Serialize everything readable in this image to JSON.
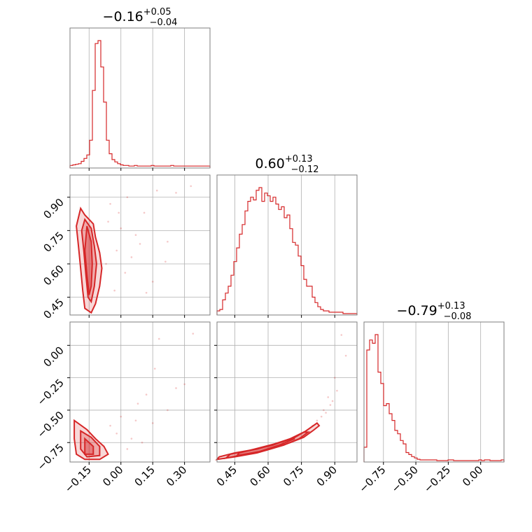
{
  "colors": {
    "accent": "#d62728",
    "grid": "#b0b0b0",
    "frame": "#7f7f7f",
    "background": "#ffffff"
  },
  "chart_data": {
    "type": "corner",
    "grid": true,
    "parameters": [
      {
        "title": {
          "median": "−0.16",
          "plus": "+0.05",
          "minus": "−0.04"
        },
        "range": [
          -0.24,
          0.42
        ],
        "ticks": [
          {
            "v": -0.15,
            "label": "−0.15"
          },
          {
            "v": 0.0,
            "label": "0.00"
          },
          {
            "v": 0.15,
            "label": "0.15"
          },
          {
            "v": 0.3,
            "label": "0.30"
          }
        ]
      },
      {
        "title": {
          "median": "0.60",
          "plus": "+0.13",
          "minus": "−0.12"
        },
        "range": [
          0.37,
          1.0
        ],
        "ticks": [
          {
            "v": 0.45,
            "label": "0.45"
          },
          {
            "v": 0.6,
            "label": "0.60"
          },
          {
            "v": 0.75,
            "label": "0.75"
          },
          {
            "v": 0.9,
            "label": "0.90"
          }
        ]
      },
      {
        "title": {
          "median": "−0.79",
          "plus": "+0.13",
          "minus": "−0.08"
        },
        "range": [
          -0.9,
          0.18
        ],
        "ticks": [
          {
            "v": -0.75,
            "label": "−0.75"
          },
          {
            "v": -0.5,
            "label": "−0.50"
          },
          {
            "v": -0.25,
            "label": "−0.25"
          },
          {
            "v": 0.0,
            "label": "0.00"
          }
        ]
      }
    ],
    "histograms": [
      {
        "param": 0,
        "bin_start": -0.24,
        "bin_width": 0.0132,
        "counts": [
          2,
          3,
          4,
          5,
          9,
          14,
          20,
          45,
          130,
          210,
          215,
          170,
          110,
          45,
          22,
          12,
          8,
          5,
          3,
          2,
          2,
          1,
          1,
          2,
          1,
          1,
          1,
          1,
          1,
          2,
          1,
          1,
          1,
          1,
          1,
          1,
          2,
          1,
          1,
          1,
          1,
          1,
          1,
          1,
          1,
          1,
          1,
          1,
          1,
          1
        ]
      },
      {
        "param": 1,
        "bin_start": 0.37,
        "bin_width": 0.0126,
        "counts": [
          2,
          3,
          10,
          15,
          20,
          28,
          38,
          48,
          58,
          65,
          75,
          82,
          85,
          83,
          90,
          92,
          82,
          88,
          86,
          82,
          85,
          80,
          76,
          78,
          70,
          72,
          62,
          52,
          50,
          42,
          35,
          25,
          20,
          20,
          12,
          8,
          5,
          3,
          2,
          2,
          1,
          1,
          1,
          1,
          1,
          0,
          0,
          0,
          0,
          0
        ]
      },
      {
        "param": 2,
        "bin_start": -0.9,
        "bin_width": 0.0216,
        "counts": [
          20,
          165,
          180,
          175,
          188,
          132,
          115,
          82,
          85,
          70,
          60,
          45,
          40,
          30,
          25,
          12,
          9,
          6,
          4,
          2,
          1,
          1,
          1,
          1,
          1,
          1,
          0,
          0,
          0,
          0,
          1,
          1,
          0,
          0,
          0,
          0,
          0,
          0,
          0,
          0,
          0,
          1,
          0,
          1,
          1,
          0,
          0,
          0,
          0,
          1
        ]
      }
    ],
    "scatter": [
      {
        "x_param": 0,
        "y_param": 1,
        "contours": [
          [
            [
              -0.19,
              0.85
            ],
            [
              -0.17,
              0.82
            ],
            [
              -0.13,
              0.78
            ],
            [
              -0.12,
              0.72
            ],
            [
              -0.1,
              0.65
            ],
            [
              -0.09,
              0.58
            ],
            [
              -0.1,
              0.5
            ],
            [
              -0.12,
              0.42
            ],
            [
              -0.14,
              0.38
            ],
            [
              -0.17,
              0.4
            ],
            [
              -0.18,
              0.48
            ],
            [
              -0.19,
              0.58
            ],
            [
              -0.2,
              0.68
            ],
            [
              -0.21,
              0.77
            ]
          ],
          [
            [
              -0.17,
              0.8
            ],
            [
              -0.14,
              0.76
            ],
            [
              -0.125,
              0.68
            ],
            [
              -0.115,
              0.6
            ],
            [
              -0.125,
              0.5
            ],
            [
              -0.14,
              0.43
            ],
            [
              -0.155,
              0.45
            ],
            [
              -0.165,
              0.55
            ],
            [
              -0.175,
              0.66
            ],
            [
              -0.185,
              0.75
            ]
          ],
          [
            [
              -0.16,
              0.77
            ],
            [
              -0.14,
              0.7
            ],
            [
              -0.135,
              0.6
            ],
            [
              -0.14,
              0.5
            ],
            [
              -0.15,
              0.46
            ],
            [
              -0.16,
              0.55
            ],
            [
              -0.17,
              0.66
            ]
          ]
        ],
        "points": [
          [
            0.26,
            0.92
          ],
          [
            0.33,
            0.95
          ],
          [
            0.11,
            0.83
          ],
          [
            0.21,
            0.61
          ],
          [
            -0.05,
            0.87
          ],
          [
            0.02,
            0.56
          ],
          [
            0.07,
            0.73
          ],
          [
            -0.02,
            0.66
          ],
          [
            0.15,
            0.52
          ],
          [
            0.17,
            0.93
          ],
          [
            -0.03,
            0.48
          ],
          [
            0.05,
            0.63
          ],
          [
            0.09,
            0.69
          ],
          [
            -0.06,
            0.79
          ],
          [
            0.12,
            0.47
          ],
          [
            -0.01,
            0.83
          ],
          [
            0.03,
            0.9
          ],
          [
            0.22,
            0.7
          ],
          [
            -0.07,
            0.6
          ],
          [
            0.0,
            0.76
          ]
        ]
      },
      {
        "x_param": 0,
        "y_param": 2,
        "contours": [
          [
            [
              -0.22,
              -0.58
            ],
            [
              -0.16,
              -0.65
            ],
            [
              -0.12,
              -0.72
            ],
            [
              -0.08,
              -0.78
            ],
            [
              -0.06,
              -0.84
            ],
            [
              -0.1,
              -0.88
            ],
            [
              -0.17,
              -0.88
            ],
            [
              -0.21,
              -0.84
            ],
            [
              -0.22,
              -0.72
            ]
          ],
          [
            [
              -0.19,
              -0.66
            ],
            [
              -0.14,
              -0.71
            ],
            [
              -0.1,
              -0.78
            ],
            [
              -0.1,
              -0.85
            ],
            [
              -0.16,
              -0.86
            ],
            [
              -0.19,
              -0.8
            ]
          ],
          [
            [
              -0.17,
              -0.72
            ],
            [
              -0.13,
              -0.78
            ],
            [
              -0.13,
              -0.84
            ],
            [
              -0.17,
              -0.84
            ]
          ]
        ],
        "points": [
          [
            0.34,
            0.09
          ],
          [
            0.12,
            -0.38
          ],
          [
            0.26,
            -0.33
          ],
          [
            0.0,
            -0.55
          ],
          [
            0.05,
            -0.72
          ],
          [
            0.18,
            0.05
          ],
          [
            0.08,
            -0.45
          ],
          [
            -0.02,
            -0.68
          ],
          [
            0.15,
            -0.6
          ],
          [
            0.22,
            -0.5
          ],
          [
            0.03,
            -0.8
          ],
          [
            0.1,
            -0.75
          ],
          [
            -0.05,
            -0.62
          ],
          [
            0.07,
            -0.58
          ],
          [
            0.3,
            -0.3
          ],
          [
            0.16,
            -0.18
          ]
        ]
      },
      {
        "x_param": 1,
        "y_param": 2,
        "contours": [
          [
            [
              0.37,
              -0.88
            ],
            [
              0.45,
              -0.86
            ],
            [
              0.55,
              -0.83
            ],
            [
              0.63,
              -0.79
            ],
            [
              0.7,
              -0.75
            ],
            [
              0.76,
              -0.71
            ],
            [
              0.8,
              -0.66
            ],
            [
              0.83,
              -0.62
            ],
            [
              0.82,
              -0.6
            ],
            [
              0.77,
              -0.66
            ],
            [
              0.71,
              -0.72
            ],
            [
              0.63,
              -0.76
            ],
            [
              0.55,
              -0.8
            ],
            [
              0.45,
              -0.83
            ],
            [
              0.38,
              -0.86
            ]
          ],
          [
            [
              0.41,
              -0.87
            ],
            [
              0.5,
              -0.84
            ],
            [
              0.59,
              -0.81
            ],
            [
              0.67,
              -0.77
            ],
            [
              0.74,
              -0.72
            ],
            [
              0.78,
              -0.67
            ],
            [
              0.76,
              -0.67
            ],
            [
              0.7,
              -0.72
            ],
            [
              0.62,
              -0.77
            ],
            [
              0.52,
              -0.81
            ],
            [
              0.43,
              -0.84
            ]
          ],
          [
            [
              0.46,
              -0.85
            ],
            [
              0.56,
              -0.82
            ],
            [
              0.65,
              -0.77
            ],
            [
              0.72,
              -0.72
            ],
            [
              0.7,
              -0.72
            ],
            [
              0.63,
              -0.76
            ],
            [
              0.54,
              -0.8
            ],
            [
              0.47,
              -0.83
            ]
          ]
        ],
        "points": [
          [
            0.93,
            0.08
          ],
          [
            0.95,
            -0.08
          ],
          [
            0.9,
            -0.25
          ],
          [
            0.87,
            -0.4
          ],
          [
            0.85,
            -0.5
          ],
          [
            0.88,
            -0.46
          ],
          [
            0.84,
            -0.55
          ],
          [
            0.86,
            -0.52
          ],
          [
            0.91,
            -0.35
          ],
          [
            0.82,
            -0.58
          ],
          [
            0.8,
            -0.62
          ],
          [
            0.89,
            -0.43
          ]
        ]
      }
    ]
  }
}
